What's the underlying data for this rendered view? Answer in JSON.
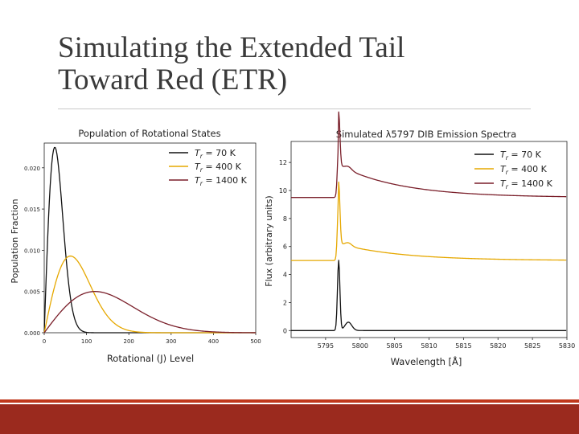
{
  "slide": {
    "title_line1": "Simulating the Extended Tail",
    "title_line2": "Toward Red (ETR)"
  },
  "colors": {
    "series_70": "#111111",
    "series_400": "#e6a800",
    "series_1400": "#7a1f2a",
    "footer_thin": "#c0381c",
    "footer_bar": "#9b2a1e",
    "title_text": "#3a3a3a"
  },
  "chart_data": [
    {
      "type": "line",
      "title": "Population of Rotational States",
      "xlabel": "Rotational (J) Level",
      "ylabel": "Population Fraction",
      "xlim": [
        0,
        500
      ],
      "ylim": [
        0,
        0.023
      ],
      "x_ticks": [
        0,
        100,
        200,
        300,
        400,
        500
      ],
      "x_tick_labels": [
        "0",
        "100",
        "200",
        "300",
        "400",
        "500"
      ],
      "y_ticks": [
        0.0,
        0.005,
        0.01,
        0.015,
        0.02
      ],
      "y_tick_labels": [
        "0.000",
        "0.005",
        "0.010",
        "0.015",
        "0.020"
      ],
      "legend_position": "top-right",
      "series": [
        {
          "name": "Tr = 70 K",
          "label_var": "T",
          "label_sub": "r",
          "label_rest": " = 70 K",
          "color": "#111111",
          "peak_x": 25,
          "peak_y": 0.0225,
          "width": 35
        },
        {
          "name": "Tr = 400 K",
          "label_var": "T",
          "label_sub": "r",
          "label_rest": " = 400 K",
          "color": "#e6a800",
          "peak_x": 62,
          "peak_y": 0.0093,
          "width": 80
        },
        {
          "name": "Tr = 1400 K",
          "label_var": "T",
          "label_sub": "r",
          "label_rest": " = 1400 K",
          "color": "#7a1f2a",
          "peak_x": 120,
          "peak_y": 0.005,
          "width": 150
        }
      ]
    },
    {
      "type": "line",
      "title": "Simulated λ5797 DIB Emission Spectra",
      "xlabel": "Wavelength [Å]",
      "ylabel": "Flux (arbitrary units)",
      "xlim": [
        5790,
        5830
      ],
      "ylim": [
        -0.5,
        13.5
      ],
      "x_ticks": [
        5795,
        5800,
        5805,
        5810,
        5815,
        5820,
        5825,
        5830
      ],
      "x_tick_labels": [
        "5795",
        "5800",
        "5805",
        "5810",
        "5815",
        "5820",
        "5825",
        "5830"
      ],
      "y_ticks": [
        0,
        2,
        4,
        6,
        8,
        10,
        12
      ],
      "y_tick_labels": [
        "0",
        "2",
        "4",
        "6",
        "8",
        "10",
        "12"
      ],
      "legend_position": "top-right",
      "series": [
        {
          "name": "Tr = 70 K",
          "label_var": "T",
          "label_sub": "r",
          "label_rest": " = 70 K",
          "color": "#111111",
          "offset": 0.0,
          "peak_x": 5796.9,
          "peak": 5.0,
          "tail_level": 0.0
        },
        {
          "name": "Tr = 400 K",
          "label_var": "T",
          "label_sub": "r",
          "label_rest": " = 400 K",
          "color": "#e6a800",
          "offset": 5.0,
          "peak_x": 5796.9,
          "peak": 4.4,
          "tail_level": 1.2
        },
        {
          "name": "Tr = 1400 K",
          "label_var": "T",
          "label_sub": "r",
          "label_rest": " = 1400 K",
          "color": "#7a1f2a",
          "offset": 9.5,
          "peak_x": 5796.9,
          "peak": 3.8,
          "tail_level": 2.3
        }
      ]
    }
  ]
}
